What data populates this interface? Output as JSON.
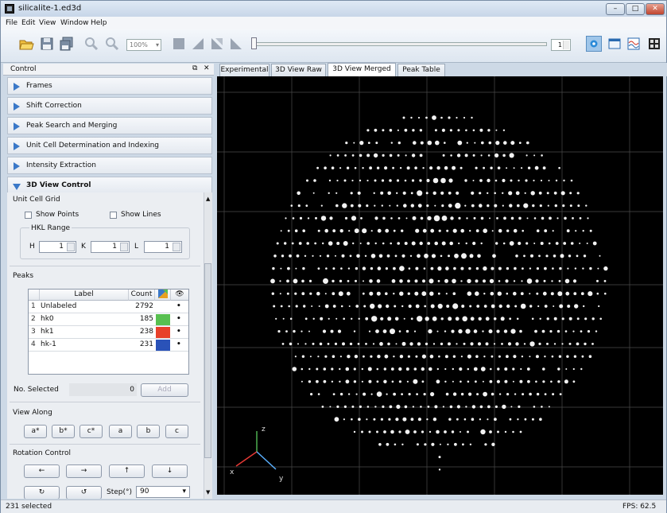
{
  "window": {
    "title": "silicalite-1.ed3d"
  },
  "menu": [
    "File",
    "Edit",
    "View",
    "Window",
    "Help"
  ],
  "toolbar": {
    "zoom": "100%",
    "frame": "1"
  },
  "control": {
    "title": "Control",
    "sections": [
      "Frames",
      "Shift Correction",
      "Peak Search and Merging",
      "Unit Cell Determination and Indexing",
      "Intensity Extraction",
      "3D View Control"
    ],
    "unit_cell_grid": {
      "title": "Unit Cell Grid",
      "show_points": "Show Points",
      "show_lines": "Show Lines",
      "hkl_title": "HKL Range",
      "h_label": "H",
      "h": "1",
      "k_label": "K",
      "k": "1",
      "l_label": "L",
      "l": "1"
    },
    "peaks": {
      "title": "Peaks",
      "headers": {
        "label": "Label",
        "count": "Count"
      },
      "rows": [
        {
          "idx": "1",
          "label": "Unlabeled",
          "count": "2792",
          "color": "#ffffff",
          "visible": "•"
        },
        {
          "idx": "2",
          "label": "hk0",
          "count": "185",
          "color": "#58c050",
          "visible": "•"
        },
        {
          "idx": "3",
          "label": "hk1",
          "count": "238",
          "color": "#e8402a",
          "visible": "•"
        },
        {
          "idx": "4",
          "label": "hk-1",
          "count": "231",
          "color": "#2a52b8",
          "visible": "•"
        }
      ],
      "no_selected_label": "No. Selected",
      "no_selected": "0",
      "add": "Add"
    },
    "view_along": {
      "title": "View Along",
      "buttons": [
        "a*",
        "b*",
        "c*",
        "a",
        "b",
        "c"
      ]
    },
    "rotation": {
      "title": "Rotation Control",
      "arrows": [
        "←",
        "→",
        "↑",
        "↓"
      ],
      "rot_ccw": "↻",
      "rot_cw": "↺",
      "step_label": "Step(°)",
      "step": "90"
    }
  },
  "view_tabs": [
    "Experimental",
    "3D View Raw",
    "3D View Merged",
    "Peak Table"
  ],
  "active_tab": "3D View Merged",
  "axes": {
    "z": "z",
    "x": "x",
    "y": "y"
  },
  "status": {
    "left": "231 selected",
    "right": "FPS: 62.5"
  }
}
